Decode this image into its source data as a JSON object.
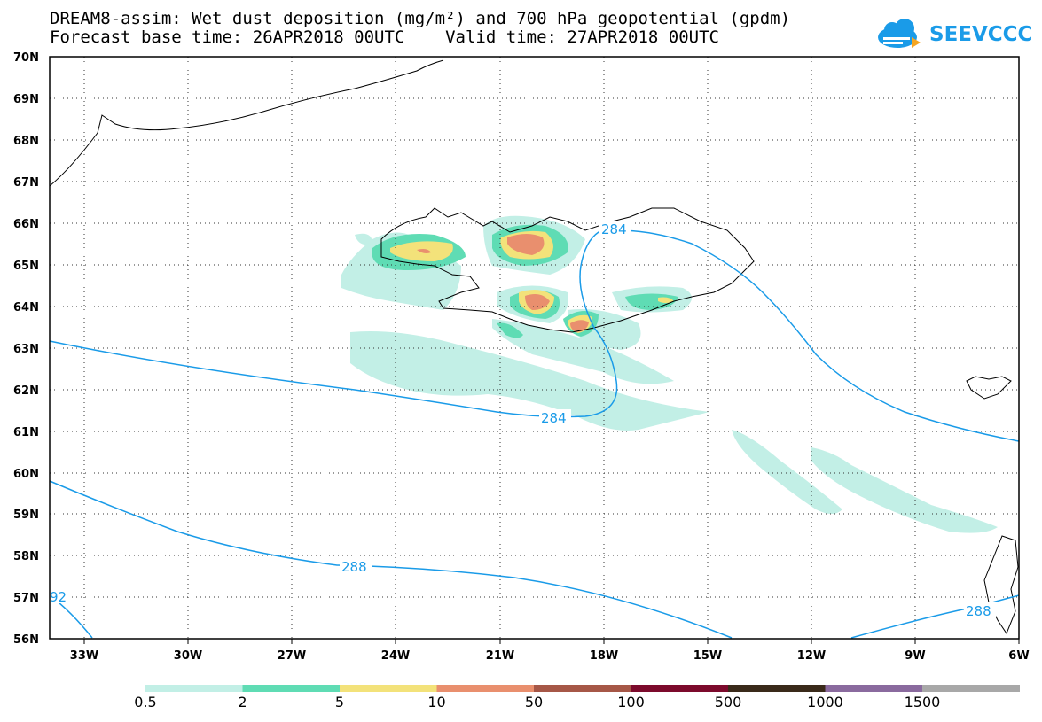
{
  "title": {
    "line1": "DREAM8-assim: Wet dust deposition (mg/m²) and 700 hPa geopotential (gpdm)",
    "line2": "Forecast base time: 26APR2018 00UTC    Valid time: 27APR2018 00UTC"
  },
  "logo": {
    "text": "SEEVCCC",
    "icon": "cloud-icon"
  },
  "lat_labels": [
    "70N",
    "69N",
    "68N",
    "67N",
    "66N",
    "65N",
    "64N",
    "63N",
    "62N",
    "61N",
    "60N",
    "59N",
    "58N",
    "57N",
    "56N"
  ],
  "lon_labels": [
    "33W",
    "30W",
    "27W",
    "24W",
    "21W",
    "18W",
    "15W",
    "12W",
    "9W",
    "6W"
  ],
  "contour_labels": [
    "284",
    "284",
    "288",
    "288",
    "92"
  ],
  "colorbar": {
    "labels": [
      "0.5",
      "2",
      "5",
      "10",
      "50",
      "100",
      "500",
      "1000",
      "1500"
    ],
    "colors": [
      "#c2efe6",
      "#5fdcb4",
      "#f3e27a",
      "#e98f6e",
      "#a65747",
      "#7c0a2c",
      "#3a2a1a",
      "#8a6a9e",
      "#a8a8a8"
    ]
  },
  "colors": {
    "contour": "#1a9be8",
    "coast": "#000000"
  }
}
